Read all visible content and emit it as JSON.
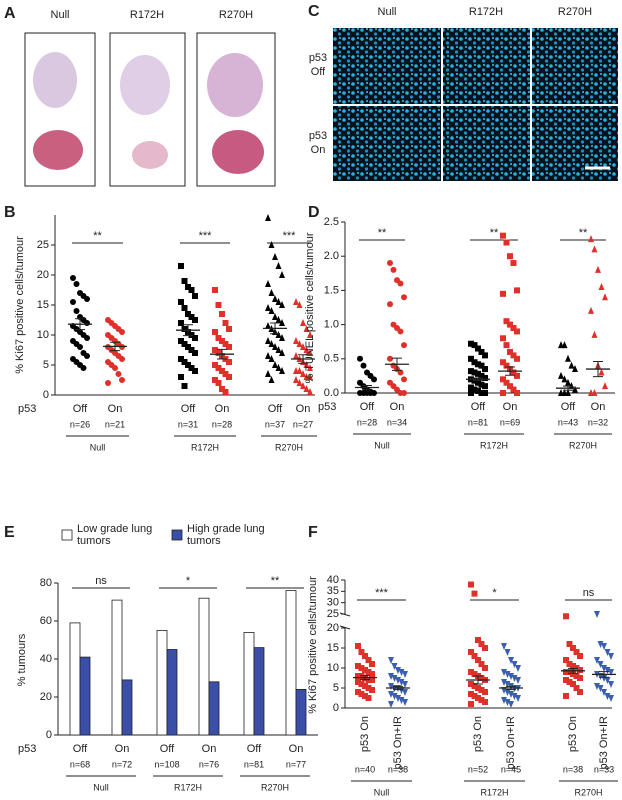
{
  "figure": {
    "panel_a": {
      "label": "A",
      "columns": [
        "Null",
        "R172H",
        "R270H"
      ]
    },
    "panel_c": {
      "label": "C",
      "columns": [
        "Null",
        "R172H",
        "R270H"
      ],
      "rows": [
        [
          "p53",
          "Off"
        ],
        [
          "p53",
          "On"
        ]
      ]
    }
  },
  "chart_data": [
    {
      "type": "dotplot",
      "panel_label": "B",
      "ylabel": "% Ki67 positive cells/tumour",
      "ylim": [
        0,
        30
      ],
      "yticks": [
        0,
        5,
        10,
        15,
        20,
        25
      ],
      "row_label": "p53",
      "groups": [
        {
          "name": "Null",
          "significance": "**",
          "items": [
            {
              "label": "Off",
              "n": "n=26",
              "color": "#000000",
              "marker": "circle",
              "values": [
                19.5,
                18.5,
                17,
                16.5,
                16,
                15.5,
                14,
                13,
                12.5,
                12,
                11.5,
                11,
                10.5,
                10,
                9.5,
                9,
                8.5,
                8,
                7,
                6.5,
                6,
                5.5,
                5,
                4.5
              ],
              "mean": 11.8,
              "sem": 0.9
            },
            {
              "label": "On",
              "n": "n=21",
              "color": "#e0302a",
              "marker": "circle",
              "values": [
                12.5,
                12,
                11.5,
                11,
                10.5,
                10,
                9.5,
                9,
                8.5,
                8,
                8,
                7.5,
                7,
                6.5,
                6,
                5.5,
                5,
                4.5,
                3.5,
                2.5,
                2
              ],
              "mean": 8.1,
              "sem": 0.7
            }
          ]
        },
        {
          "name": "R172H",
          "significance": "***",
          "items": [
            {
              "label": "Off",
              "n": "n=31",
              "color": "#000000",
              "marker": "square",
              "values": [
                21.5,
                19,
                18,
                17.5,
                16.5,
                15.5,
                14.5,
                13.5,
                13,
                12.5,
                12,
                11,
                10.5,
                10,
                9.5,
                9,
                8.5,
                8,
                7.5,
                7,
                6,
                5.5,
                5,
                4.5,
                4,
                3,
                1.5
              ],
              "mean": 10.8,
              "sem": 0.9
            },
            {
              "label": "On",
              "n": "n=28",
              "color": "#e0302a",
              "marker": "square",
              "values": [
                17.5,
                15,
                13.5,
                12,
                11,
                10.5,
                9.5,
                9,
                8.5,
                8,
                7.5,
                7,
                6.5,
                6,
                5.5,
                5,
                4.5,
                4,
                3.5,
                3,
                2.5,
                2,
                1,
                0.5
              ],
              "mean": 6.8,
              "sem": 0.8
            }
          ]
        },
        {
          "name": "R270H",
          "significance": "***",
          "items": [
            {
              "label": "Off",
              "n": "n=37",
              "color": "#000000",
              "marker": "triangle",
              "values": [
                29.5,
                25,
                23,
                21.5,
                20,
                18.5,
                17,
                16,
                15.5,
                15,
                14.5,
                14,
                13,
                12.5,
                12,
                11.5,
                11,
                10.5,
                10,
                9.5,
                9,
                8.5,
                8,
                7.5,
                7,
                6.5,
                6,
                5,
                4.5,
                4,
                3.5,
                2.5
              ],
              "mean": 11.1,
              "sem": 0.9
            },
            {
              "label": "On",
              "n": "n=27",
              "color": "#e0302a",
              "marker": "triangle",
              "values": [
                15.5,
                15,
                12,
                11,
                10,
                9,
                8.5,
                8,
                7.5,
                7,
                6.5,
                6,
                5.5,
                5,
                4.5,
                4,
                4,
                3.5,
                3,
                3,
                2.5,
                2,
                1.5,
                1,
                0.5
              ],
              "mean": 6.0,
              "sem": 0.7
            }
          ]
        }
      ]
    },
    {
      "type": "dotplot",
      "panel_label": "D",
      "ylabel": "% TUNEL positive cells/tumour",
      "ylim": [
        0,
        2.5
      ],
      "yticks": [
        {
          "value": 0,
          "label": "0.0"
        },
        0.5,
        {
          "value": 1,
          "label": "1.0"
        },
        1.5,
        {
          "value": 2,
          "label": "2.0"
        },
        2.5
      ],
      "row_label": "p53",
      "groups": [
        {
          "name": "Null",
          "significance": "**",
          "items": [
            {
              "label": "Off",
              "n": "n=28",
              "color": "#000000",
              "marker": "circle",
              "values": [
                0.5,
                0.4,
                0.3,
                0.25,
                0.2,
                0.15,
                0.1,
                0.05,
                0.02,
                0,
                0,
                0,
                0,
                0
              ],
              "mean": 0.08,
              "sem": 0.03
            },
            {
              "label": "On",
              "n": "n=34",
              "color": "#e0302a",
              "marker": "circle",
              "values": [
                1.9,
                1.8,
                1.65,
                1.6,
                1.4,
                1.3,
                1.0,
                0.95,
                0.9,
                0.7,
                0.5,
                0.4,
                0.35,
                0.3,
                0.2,
                0.15,
                0.1,
                0.05,
                0,
                0
              ],
              "mean": 0.42,
              "sem": 0.09
            }
          ]
        },
        {
          "name": "R172H",
          "significance": "**",
          "items": [
            {
              "label": "Off",
              "n": "n=81",
              "color": "#000000",
              "marker": "square",
              "values": [
                0.72,
                0.7,
                0.65,
                0.6,
                0.55,
                0.5,
                0.45,
                0.42,
                0.4,
                0.35,
                0.32,
                0.3,
                0.28,
                0.25,
                0.22,
                0.2,
                0.18,
                0.15,
                0.12,
                0.1,
                0.08,
                0.05,
                0.03,
                0,
                0,
                0
              ],
              "mean": 0.2,
              "sem": 0.02
            },
            {
              "label": "On",
              "n": "n=69",
              "color": "#e0302a",
              "marker": "square",
              "values": [
                2.3,
                2.2,
                2.0,
                1.9,
                1.5,
                1.45,
                1.05,
                1.0,
                0.95,
                0.9,
                0.8,
                0.7,
                0.6,
                0.55,
                0.5,
                0.45,
                0.4,
                0.35,
                0.3,
                0.25,
                0.2,
                0.15,
                0.1,
                0.05,
                0,
                0
              ],
              "mean": 0.32,
              "sem": 0.06
            }
          ]
        },
        {
          "name": "R270H",
          "significance": "**",
          "items": [
            {
              "label": "Off",
              "n": "n=43",
              "color": "#000000",
              "marker": "triangle",
              "values": [
                0.7,
                0.7,
                0.5,
                0.4,
                0.35,
                0.25,
                0.2,
                0.15,
                0.1,
                0.05,
                0,
                0,
                0
              ],
              "mean": 0.07,
              "sem": 0.03
            },
            {
              "label": "On",
              "n": "n=32",
              "color": "#e0302a",
              "marker": "triangle",
              "values": [
                2.25,
                2.1,
                1.8,
                1.55,
                1.4,
                1.2,
                0.85,
                0.4,
                0.3,
                0.1,
                0,
                0
              ],
              "mean": 0.35,
              "sem": 0.11
            }
          ]
        }
      ]
    },
    {
      "type": "bar",
      "panel_label": "E",
      "ylabel": "% tumours",
      "ylim": [
        0,
        80
      ],
      "yticks": [
        0,
        20,
        40,
        60,
        80
      ],
      "row_label": "p53",
      "groups": [
        {
          "name": "Null",
          "significance": "ns",
          "items": [
            {
              "label": "Off",
              "n": "n=68"
            },
            {
              "label": "On",
              "n": "n=72"
            }
          ]
        },
        {
          "name": "R172H",
          "significance": "*",
          "items": [
            {
              "label": "Off",
              "n": "n=108"
            },
            {
              "label": "On",
              "n": "n=76"
            }
          ]
        },
        {
          "name": "R270H",
          "significance": "**",
          "items": [
            {
              "label": "Off",
              "n": "n=81"
            },
            {
              "label": "On",
              "n": "n=77"
            }
          ]
        }
      ],
      "series": [
        {
          "name": "Low grade lung tumors",
          "color": "#ffffff",
          "values": [
            59,
            71,
            55,
            72,
            54,
            76
          ]
        },
        {
          "name": "High grade lung tumors",
          "color": "#3b4fa8",
          "values": [
            41,
            29,
            45,
            28,
            46,
            24
          ]
        }
      ]
    },
    {
      "type": "dotplot",
      "panel_label": "F",
      "ylabel": "% Ki67 positive cells/tumour",
      "ylim": [
        0,
        40
      ],
      "ybreak": [
        20,
        25
      ],
      "yticks": [
        0,
        5,
        10,
        15,
        20,
        25,
        30,
        35,
        40
      ],
      "rotated_labels": true,
      "groups": [
        {
          "name": "Null",
          "significance": "***",
          "items": [
            {
              "label": "p53 On",
              "n": "n=40",
              "color": "#e0302a",
              "marker": "square",
              "values": [
                15.5,
                14,
                13,
                12,
                11,
                10.5,
                10,
                9.5,
                9,
                8.5,
                8,
                8,
                7.5,
                7,
                7,
                6.5,
                6,
                5.5,
                5,
                4.5,
                4,
                3.5,
                3,
                2.5
              ],
              "mean": 7.6,
              "sem": 0.5
            },
            {
              "label": "p53 On+IR",
              "n": "n=38",
              "color": "#3b5fb0",
              "marker": "triangle-down",
              "values": [
                12,
                10.5,
                9.5,
                9,
                8.5,
                8,
                7.5,
                7,
                6.5,
                6,
                5.5,
                5,
                5,
                4.5,
                4,
                3.5,
                3,
                2.5,
                2,
                1.5,
                1
              ],
              "mean": 5.0,
              "sem": 0.4
            }
          ]
        },
        {
          "name": "R172H",
          "significance": "*",
          "items": [
            {
              "label": "p53 On",
              "n": "n=52",
              "color": "#e0302a",
              "marker": "square",
              "values": [
                38,
                34,
                17,
                16,
                15,
                14,
                13,
                12,
                11,
                10,
                9,
                8.5,
                8,
                7.5,
                7,
                6,
                5.5,
                5,
                4.5,
                4,
                3.5,
                3,
                2.5,
                2,
                1.5,
                1
              ],
              "mean": 7.0,
              "sem": 1.0
            },
            {
              "label": "p53 On+IR",
              "n": "n=45",
              "color": "#3b5fb0",
              "marker": "triangle-down",
              "values": [
                15.5,
                14,
                12,
                11,
                10,
                9,
                8.5,
                8,
                7.5,
                7,
                6.5,
                6,
                5.5,
                5,
                5,
                4.5,
                4,
                3.5,
                3,
                2.5,
                2,
                1.5,
                1
              ],
              "mean": 5.0,
              "sem": 0.4
            }
          ]
        },
        {
          "name": "R270H",
          "significance": "ns",
          "items": [
            {
              "label": "p53 On",
              "n": "n=38",
              "color": "#e0302a",
              "marker": "square",
              "values": [
                24,
                16,
                15,
                14,
                13,
                12,
                11,
                10.5,
                10,
                9.5,
                9,
                9,
                8.5,
                8,
                7.5,
                7,
                6.5,
                6,
                5,
                4,
                3
              ],
              "mean": 9.3,
              "sem": 0.6
            },
            {
              "label": "p53 On+IR",
              "n": "n=33",
              "color": "#3b5fb0",
              "marker": "triangle-down",
              "values": [
                25,
                16,
                15.5,
                14,
                13,
                12,
                11,
                10,
                9.5,
                9,
                8.5,
                8,
                7.5,
                7,
                6,
                5.5,
                5,
                4,
                3,
                2.5
              ],
              "mean": 8.4,
              "sem": 0.7
            }
          ]
        }
      ]
    }
  ]
}
